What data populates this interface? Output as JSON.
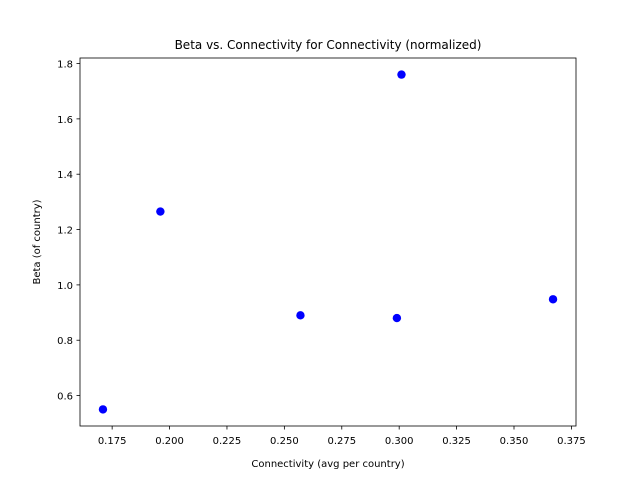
{
  "chart_data": {
    "type": "scatter",
    "title": "Beta vs. Connectivity for Connectivity (normalized)",
    "xlabel": "Connectivity (avg per country)",
    "ylabel": "Beta (of country)",
    "xlim": [
      0.161,
      0.377
    ],
    "ylim": [
      0.49,
      1.82
    ],
    "xticks": [
      0.175,
      0.2,
      0.225,
      0.25,
      0.275,
      0.3,
      0.325,
      0.35,
      0.375
    ],
    "xtick_labels": [
      "0.175",
      "0.200",
      "0.225",
      "0.250",
      "0.275",
      "0.300",
      "0.325",
      "0.350",
      "0.375"
    ],
    "yticks": [
      0.6,
      0.8,
      1.0,
      1.2,
      1.4,
      1.6,
      1.8
    ],
    "ytick_labels": [
      "0.6",
      "0.8",
      "1.0",
      "1.2",
      "1.4",
      "1.6",
      "1.8"
    ],
    "grid": false,
    "marker_color": "#0000ff",
    "x": [
      0.171,
      0.196,
      0.257,
      0.299,
      0.301,
      0.367
    ],
    "y": [
      0.55,
      1.265,
      0.89,
      0.88,
      1.76,
      0.948
    ]
  }
}
